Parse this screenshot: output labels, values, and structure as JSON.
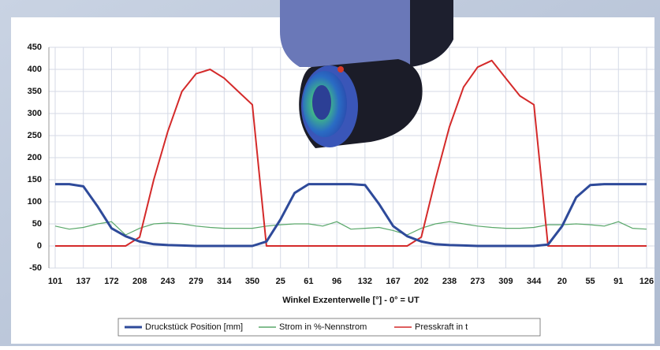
{
  "chart_data": {
    "type": "line",
    "xlabel": "Winkel Exzenterwelle [°] - 0° = UT",
    "categories": [
      "101",
      null,
      "137",
      null,
      "172",
      null,
      "208",
      null,
      "243",
      null,
      "279",
      null,
      "314",
      null,
      "350",
      null,
      "25",
      null,
      "61",
      null,
      "96",
      null,
      "132",
      null,
      "167",
      null,
      "202",
      null,
      "238",
      null,
      "273",
      null,
      "309",
      null,
      "344",
      null,
      "20",
      null,
      "55",
      null,
      "91",
      null,
      "126"
    ],
    "series": [
      {
        "name": "Druckstück Position [mm]",
        "color": "#2e4a9a",
        "values": [
          140,
          140,
          135,
          90,
          40,
          22,
          10,
          4,
          2,
          1,
          0,
          0,
          0,
          0,
          0,
          10,
          60,
          120,
          140,
          140,
          140,
          140,
          138,
          95,
          45,
          22,
          10,
          4,
          2,
          1,
          0,
          0,
          0,
          0,
          0,
          3,
          45,
          110,
          138,
          140,
          140,
          140,
          140
        ]
      },
      {
        "name": "Strom in %-Nennstrom",
        "color": "#5aa86a",
        "values": [
          45,
          38,
          42,
          50,
          55,
          25,
          40,
          50,
          52,
          50,
          45,
          42,
          40,
          40,
          40,
          45,
          48,
          50,
          50,
          45,
          55,
          38,
          40,
          42,
          35,
          25,
          40,
          50,
          55,
          50,
          45,
          42,
          40,
          40,
          42,
          48,
          48,
          50,
          48,
          45,
          55,
          40,
          38
        ]
      },
      {
        "name": "Presskraft in  t",
        "color": "#d42a2a",
        "values": [
          0,
          0,
          0,
          0,
          0,
          0,
          20,
          150,
          260,
          350,
          390,
          400,
          380,
          350,
          320,
          0,
          0,
          0,
          0,
          0,
          0,
          0,
          0,
          0,
          0,
          0,
          20,
          150,
          270,
          360,
          405,
          420,
          380,
          340,
          320,
          0,
          0,
          0,
          0,
          0,
          0,
          0,
          0
        ]
      }
    ],
    "ylim": [
      -50,
      450
    ],
    "yticks": [
      -50,
      0,
      50,
      100,
      150,
      200,
      250,
      300,
      350,
      400,
      450
    ],
    "grid": true
  }
}
